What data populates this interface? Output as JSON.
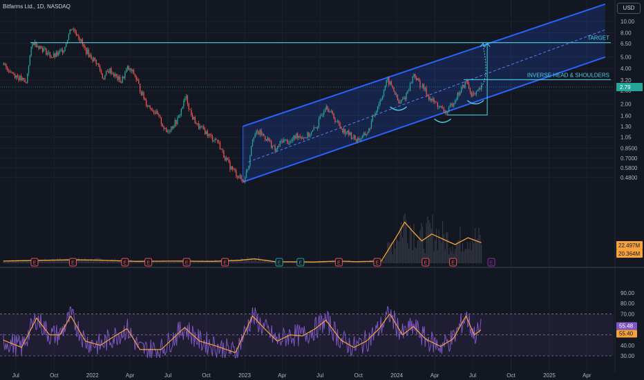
{
  "header": {
    "title": "Bitfarms Ltd., 1D, NASDAQ",
    "currency": "USD"
  },
  "colors": {
    "background": "#131722",
    "up": "#26a69a",
    "down": "#ef5350",
    "channel": "#2962ff",
    "cyan": "#4dd0e1",
    "orange": "#f7a23b",
    "rsi": "#7e57c2",
    "rsi_ma": "#f7a23b",
    "grid": "#1e222d"
  },
  "chart_data": [
    {
      "type": "candlestick",
      "name": "Bitfarms Ltd., 1D, NASDAQ",
      "y_scale": "log",
      "y_ticks": [
        10.0,
        8.0,
        6.5,
        5.0,
        4.0,
        3.2,
        2.6,
        2.0,
        1.6,
        1.3,
        1.05,
        0.85,
        0.7,
        0.58,
        0.48
      ],
      "y_tick_labels": [
        "10.00",
        "8.00",
        "6.50",
        "5.00",
        "4.00",
        "3.20",
        "2.60",
        "2.00",
        "1.60",
        "1.30",
        "1.05",
        "0.8500",
        "0.7000",
        "0.5800",
        "0.4800"
      ],
      "x_tick_labels": [
        "Jul",
        "Oct",
        "2022",
        "Apr",
        "Jul",
        "Oct",
        "2023",
        "Apr",
        "Jul",
        "Oct",
        "2024",
        "Apr",
        "Jul",
        "Oct",
        "2025",
        "Apr"
      ],
      "last_price": "2.79",
      "path_points": [
        [
          "2021-06-01",
          4.3
        ],
        [
          "2021-06-20",
          3.7
        ],
        [
          "2021-07-10",
          3.3
        ],
        [
          "2021-07-25",
          3.0
        ],
        [
          "2021-08-10",
          6.7
        ],
        [
          "2021-08-25",
          6.2
        ],
        [
          "2021-09-10",
          5.6
        ],
        [
          "2021-09-25",
          5.0
        ],
        [
          "2021-10-10",
          5.3
        ],
        [
          "2021-10-25",
          6.0
        ],
        [
          "2021-11-10",
          8.9
        ],
        [
          "2021-11-25",
          7.8
        ],
        [
          "2021-12-10",
          6.0
        ],
        [
          "2021-12-25",
          5.1
        ],
        [
          "2022-01-10",
          4.5
        ],
        [
          "2022-01-25",
          3.3
        ],
        [
          "2022-02-10",
          3.9
        ],
        [
          "2022-02-25",
          3.4
        ],
        [
          "2022-03-10",
          3.1
        ],
        [
          "2022-03-25",
          4.0
        ],
        [
          "2022-04-10",
          3.6
        ],
        [
          "2022-04-25",
          2.6
        ],
        [
          "2022-05-10",
          2.0
        ],
        [
          "2022-05-25",
          1.8
        ],
        [
          "2022-06-10",
          1.5
        ],
        [
          "2022-06-25",
          1.15
        ],
        [
          "2022-07-10",
          1.3
        ],
        [
          "2022-07-25",
          1.5
        ],
        [
          "2022-08-12",
          2.3
        ],
        [
          "2022-08-25",
          1.6
        ],
        [
          "2022-09-10",
          1.3
        ],
        [
          "2022-09-25",
          1.2
        ],
        [
          "2022-10-10",
          1.05
        ],
        [
          "2022-10-25",
          1.0
        ],
        [
          "2022-11-10",
          0.75
        ],
        [
          "2022-11-25",
          0.6
        ],
        [
          "2022-12-10",
          0.52
        ],
        [
          "2022-12-28",
          0.44
        ],
        [
          "2023-01-10",
          0.62
        ],
        [
          "2023-01-20",
          1.1
        ],
        [
          "2023-02-05",
          1.15
        ],
        [
          "2023-02-25",
          1.0
        ],
        [
          "2023-03-15",
          0.8
        ],
        [
          "2023-04-01",
          1.0
        ],
        [
          "2023-04-20",
          0.95
        ],
        [
          "2023-05-05",
          1.1
        ],
        [
          "2023-05-25",
          1.05
        ],
        [
          "2023-06-10",
          1.15
        ],
        [
          "2023-06-25",
          1.35
        ],
        [
          "2023-07-15",
          2.0
        ],
        [
          "2023-07-25",
          1.7
        ],
        [
          "2023-08-10",
          1.4
        ],
        [
          "2023-08-25",
          1.2
        ],
        [
          "2023-09-10",
          1.1
        ],
        [
          "2023-09-25",
          1.0
        ],
        [
          "2023-10-10",
          1.05
        ],
        [
          "2023-10-25",
          1.2
        ],
        [
          "2023-11-10",
          1.75
        ],
        [
          "2023-11-25",
          2.3
        ],
        [
          "2023-12-08",
          3.2
        ],
        [
          "2023-12-20",
          2.8
        ],
        [
          "2024-01-05",
          2.0
        ],
        [
          "2024-01-20",
          2.3
        ],
        [
          "2024-02-01",
          2.9
        ],
        [
          "2024-02-10",
          3.6
        ],
        [
          "2024-02-20",
          3.1
        ],
        [
          "2024-03-05",
          2.7
        ],
        [
          "2024-03-20",
          2.2
        ],
        [
          "2024-04-05",
          2.0
        ],
        [
          "2024-04-20",
          1.75
        ],
        [
          "2024-05-01",
          1.7
        ],
        [
          "2024-05-15",
          2.1
        ],
        [
          "2024-06-01",
          2.6
        ],
        [
          "2024-06-15",
          3.1
        ],
        [
          "2024-06-25",
          2.5
        ],
        [
          "2024-07-05",
          2.35
        ],
        [
          "2024-07-15",
          2.6
        ],
        [
          "2024-07-22",
          2.79
        ]
      ],
      "volume_ma_points": [
        [
          "2021-06-01",
          0.35
        ],
        [
          "2021-08-15",
          0.45
        ],
        [
          "2021-11-15",
          0.55
        ],
        [
          "2022-01-15",
          0.5
        ],
        [
          "2022-04-15",
          0.3
        ],
        [
          "2022-07-15",
          0.35
        ],
        [
          "2022-10-15",
          0.3
        ],
        [
          "2022-12-15",
          0.45
        ],
        [
          "2023-01-25",
          0.7
        ],
        [
          "2023-03-15",
          0.25
        ],
        [
          "2023-06-15",
          0.2
        ],
        [
          "2023-08-15",
          0.35
        ],
        [
          "2023-09-25",
          0.25
        ],
        [
          "2023-11-25",
          0.35
        ],
        [
          "2024-01-05",
          4.8
        ],
        [
          "2024-01-20",
          6.6
        ],
        [
          "2024-02-10",
          5.0
        ],
        [
          "2024-03-01",
          3.6
        ],
        [
          "2024-03-25",
          4.7
        ],
        [
          "2024-04-20",
          3.9
        ],
        [
          "2024-05-20",
          3.0
        ],
        [
          "2024-06-20",
          4.1
        ],
        [
          "2024-07-22",
          3.3
        ]
      ],
      "volume_ma_labels": [
        "22.497M",
        "20.364M"
      ],
      "channel": {
        "upper": [
          [
            "2022-12-28",
            1.3
          ],
          [
            "2025-05-15",
            14.0
          ]
        ],
        "lower": [
          [
            "2022-12-28",
            0.44
          ],
          [
            "2025-05-15",
            5.0
          ]
        ],
        "mid": [
          [
            "2023-01-10",
            0.65
          ],
          [
            "2025-05-15",
            8.5
          ]
        ]
      },
      "levels": [
        {
          "label": "TARGET",
          "price": 6.62,
          "from": "2021-08-05",
          "to": "2025-05-10"
        },
        {
          "label": "INVERSE HEAD & SHOULDERS",
          "price": 3.22,
          "from": "2024-06-10",
          "to": "2025-05-10"
        }
      ],
      "earnings_markers": [
        {
          "date": "2021-05-10",
          "label": "E",
          "kind": "down"
        },
        {
          "date": "2021-08-15",
          "label": "E",
          "kind": "down"
        },
        {
          "date": "2021-11-15",
          "label": "E",
          "kind": "down"
        },
        {
          "date": "2022-03-20",
          "label": "E",
          "kind": "down"
        },
        {
          "date": "2022-05-15",
          "label": "E",
          "kind": "down"
        },
        {
          "date": "2022-08-15",
          "label": "E",
          "kind": "down"
        },
        {
          "date": "2022-11-15",
          "label": "E",
          "kind": "down"
        },
        {
          "date": "2023-03-25",
          "label": "E",
          "kind": "up"
        },
        {
          "date": "2023-05-15",
          "label": "E",
          "kind": "up"
        },
        {
          "date": "2023-08-15",
          "label": "E",
          "kind": "down"
        },
        {
          "date": "2023-11-15",
          "label": "E",
          "kind": "down"
        },
        {
          "date": "2024-03-10",
          "label": "E",
          "kind": "down"
        },
        {
          "date": "2024-05-15",
          "label": "E",
          "kind": "down"
        },
        {
          "date": "2024-08-15",
          "label": "E",
          "kind": "future"
        }
      ]
    },
    {
      "type": "line",
      "name": "RSI",
      "y_ticks": [
        90,
        80,
        70,
        60,
        50,
        40,
        30
      ],
      "y_tick_labels": [
        "90.00",
        "80.00",
        "70.00",
        "60.00",
        "50.00",
        "40.00",
        "30.00"
      ],
      "bands": [
        70,
        50,
        30
      ],
      "last_values": [
        "55.48",
        "55.40"
      ],
      "rsi_ma_points": [
        [
          "2021-06-01",
          45
        ],
        [
          "2021-07-15",
          38
        ],
        [
          "2021-08-20",
          66
        ],
        [
          "2021-09-20",
          50
        ],
        [
          "2021-10-15",
          50
        ],
        [
          "2021-11-10",
          68
        ],
        [
          "2021-12-15",
          44
        ],
        [
          "2022-01-20",
          40
        ],
        [
          "2022-02-20",
          48
        ],
        [
          "2022-03-25",
          56
        ],
        [
          "2022-04-25",
          36
        ],
        [
          "2022-06-15",
          36
        ],
        [
          "2022-08-10",
          57
        ],
        [
          "2022-09-15",
          44
        ],
        [
          "2022-10-20",
          40
        ],
        [
          "2022-12-10",
          33
        ],
        [
          "2023-01-20",
          68
        ],
        [
          "2023-02-20",
          55
        ],
        [
          "2023-03-20",
          44
        ],
        [
          "2023-04-20",
          50
        ],
        [
          "2023-05-20",
          49
        ],
        [
          "2023-06-20",
          56
        ],
        [
          "2023-07-15",
          64
        ],
        [
          "2023-08-20",
          45
        ],
        [
          "2023-09-20",
          38
        ],
        [
          "2023-10-20",
          44
        ],
        [
          "2023-11-20",
          56
        ],
        [
          "2023-12-15",
          70
        ],
        [
          "2024-01-15",
          50
        ],
        [
          "2024-02-10",
          58
        ],
        [
          "2024-03-10",
          46
        ],
        [
          "2024-04-15",
          39
        ],
        [
          "2024-05-15",
          46
        ],
        [
          "2024-06-15",
          68
        ],
        [
          "2024-07-05",
          50
        ],
        [
          "2024-07-22",
          55
        ]
      ]
    }
  ]
}
